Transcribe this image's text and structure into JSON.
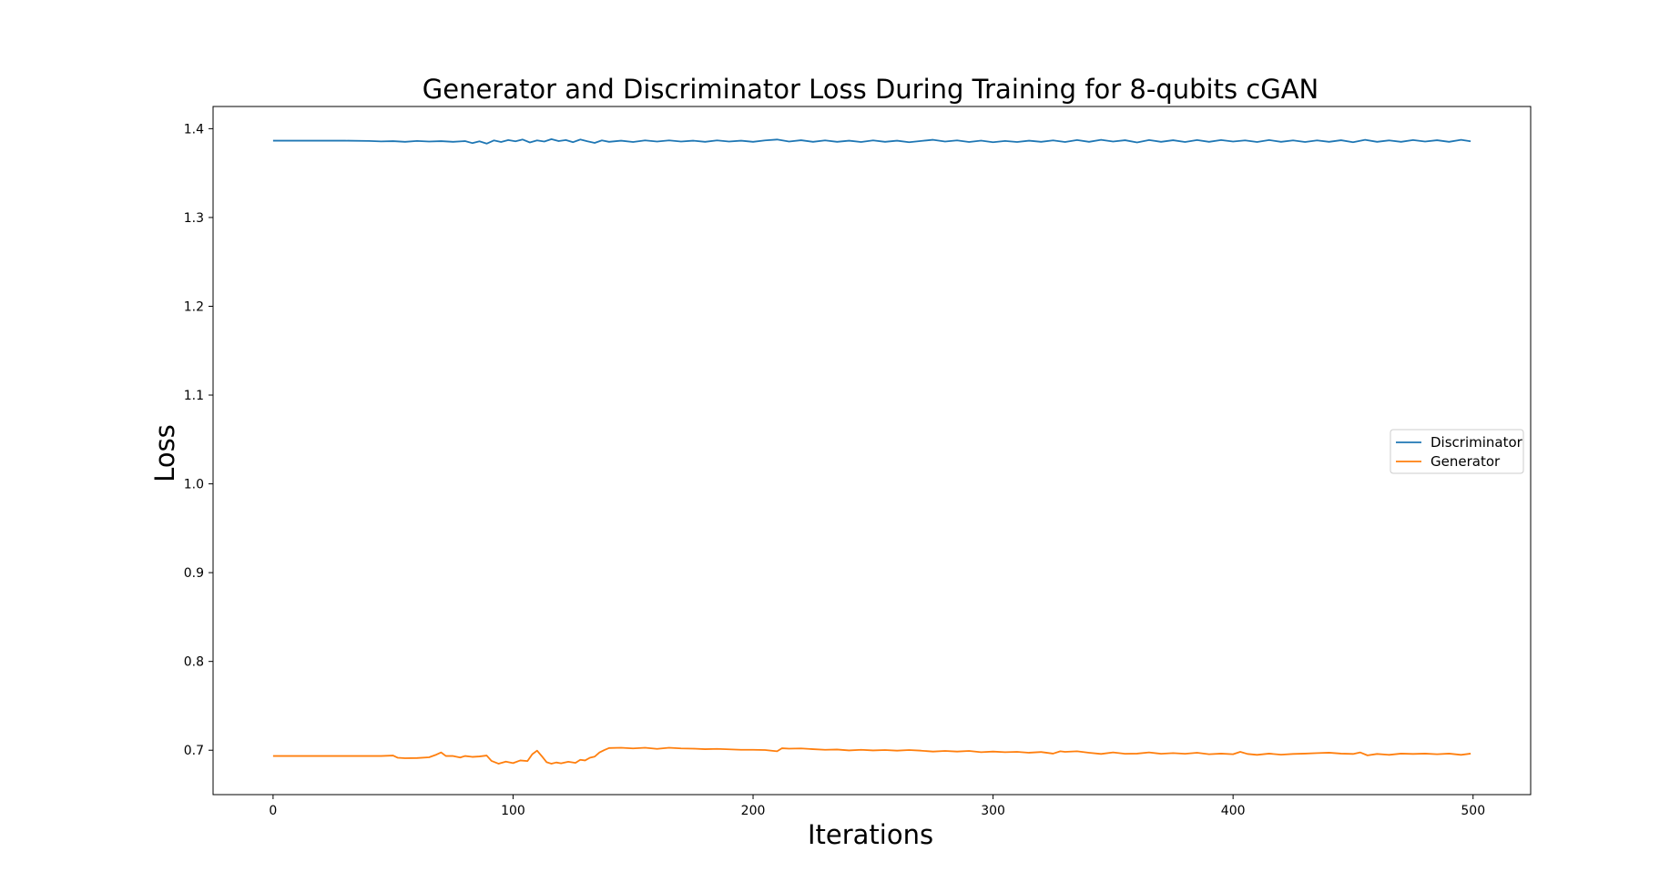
{
  "chart_data": {
    "type": "line",
    "title": "Generator and Discriminator Loss During Training for 8-qubits cGAN",
    "xlabel": "Iterations",
    "ylabel": "Loss",
    "xlim": [
      -25,
      524
    ],
    "ylim": [
      0.65,
      1.425
    ],
    "x_ticks": [
      0,
      100,
      200,
      300,
      400,
      500
    ],
    "x_tick_labels": [
      "0",
      "100",
      "200",
      "300",
      "400",
      "500"
    ],
    "y_ticks": [
      0.7,
      0.8,
      0.9,
      1.0,
      1.1,
      1.2,
      1.3,
      1.4
    ],
    "y_tick_labels": [
      "0.7",
      "0.8",
      "0.9",
      "1.0",
      "1.1",
      "1.2",
      "1.3",
      "1.4"
    ],
    "grid": false,
    "legend_position": "center-right",
    "series": [
      {
        "name": "Discriminator",
        "color": "#1f77b4",
        "points": [
          [
            0,
            1.3865
          ],
          [
            10,
            1.3865
          ],
          [
            20,
            1.3865
          ],
          [
            30,
            1.3865
          ],
          [
            40,
            1.3862
          ],
          [
            45,
            1.3857
          ],
          [
            50,
            1.386
          ],
          [
            55,
            1.3852
          ],
          [
            60,
            1.3862
          ],
          [
            65,
            1.3855
          ],
          [
            70,
            1.386
          ],
          [
            75,
            1.3852
          ],
          [
            80,
            1.386
          ],
          [
            83,
            1.3838
          ],
          [
            86,
            1.3858
          ],
          [
            89,
            1.3832
          ],
          [
            92,
            1.3868
          ],
          [
            95,
            1.385
          ],
          [
            98,
            1.3872
          ],
          [
            101,
            1.3858
          ],
          [
            104,
            1.3878
          ],
          [
            107,
            1.3845
          ],
          [
            110,
            1.3868
          ],
          [
            113,
            1.3855
          ],
          [
            116,
            1.3882
          ],
          [
            119,
            1.386
          ],
          [
            122,
            1.3872
          ],
          [
            125,
            1.3848
          ],
          [
            128,
            1.3878
          ],
          [
            131,
            1.3858
          ],
          [
            134,
            1.384
          ],
          [
            137,
            1.3868
          ],
          [
            140,
            1.3852
          ],
          [
            145,
            1.3865
          ],
          [
            150,
            1.385
          ],
          [
            155,
            1.3868
          ],
          [
            160,
            1.3855
          ],
          [
            165,
            1.3868
          ],
          [
            170,
            1.3855
          ],
          [
            175,
            1.3865
          ],
          [
            180,
            1.3852
          ],
          [
            185,
            1.3868
          ],
          [
            190,
            1.3855
          ],
          [
            195,
            1.3865
          ],
          [
            200,
            1.3852
          ],
          [
            205,
            1.3868
          ],
          [
            210,
            1.3878
          ],
          [
            215,
            1.3855
          ],
          [
            220,
            1.387
          ],
          [
            225,
            1.3852
          ],
          [
            230,
            1.3868
          ],
          [
            235,
            1.3852
          ],
          [
            240,
            1.3865
          ],
          [
            245,
            1.385
          ],
          [
            250,
            1.3868
          ],
          [
            255,
            1.3852
          ],
          [
            260,
            1.3865
          ],
          [
            265,
            1.3848
          ],
          [
            270,
            1.3862
          ],
          [
            275,
            1.3875
          ],
          [
            280,
            1.3855
          ],
          [
            285,
            1.3868
          ],
          [
            290,
            1.385
          ],
          [
            295,
            1.3866
          ],
          [
            300,
            1.3848
          ],
          [
            305,
            1.3862
          ],
          [
            310,
            1.385
          ],
          [
            315,
            1.3865
          ],
          [
            320,
            1.3852
          ],
          [
            325,
            1.3868
          ],
          [
            330,
            1.385
          ],
          [
            335,
            1.3872
          ],
          [
            340,
            1.3852
          ],
          [
            345,
            1.3875
          ],
          [
            350,
            1.3855
          ],
          [
            355,
            1.387
          ],
          [
            360,
            1.3845
          ],
          [
            365,
            1.3872
          ],
          [
            370,
            1.3852
          ],
          [
            375,
            1.387
          ],
          [
            380,
            1.385
          ],
          [
            385,
            1.3872
          ],
          [
            390,
            1.3852
          ],
          [
            395,
            1.3872
          ],
          [
            400,
            1.3855
          ],
          [
            405,
            1.3868
          ],
          [
            410,
            1.385
          ],
          [
            415,
            1.3872
          ],
          [
            420,
            1.3852
          ],
          [
            425,
            1.3868
          ],
          [
            430,
            1.385
          ],
          [
            435,
            1.3868
          ],
          [
            440,
            1.3852
          ],
          [
            445,
            1.387
          ],
          [
            450,
            1.3848
          ],
          [
            455,
            1.3875
          ],
          [
            460,
            1.3852
          ],
          [
            465,
            1.3868
          ],
          [
            470,
            1.3852
          ],
          [
            475,
            1.3872
          ],
          [
            480,
            1.3855
          ],
          [
            485,
            1.387
          ],
          [
            490,
            1.3852
          ],
          [
            495,
            1.3875
          ],
          [
            499,
            1.3858
          ]
        ]
      },
      {
        "name": "Generator",
        "color": "#ff7f0e",
        "points": [
          [
            0,
            0.6935
          ],
          [
            10,
            0.6935
          ],
          [
            20,
            0.6935
          ],
          [
            30,
            0.6935
          ],
          [
            40,
            0.6935
          ],
          [
            45,
            0.6935
          ],
          [
            50,
            0.694
          ],
          [
            52,
            0.6915
          ],
          [
            55,
            0.691
          ],
          [
            60,
            0.6912
          ],
          [
            65,
            0.692
          ],
          [
            68,
            0.695
          ],
          [
            70,
            0.6975
          ],
          [
            72,
            0.6935
          ],
          [
            75,
            0.6935
          ],
          [
            78,
            0.6918
          ],
          [
            80,
            0.6935
          ],
          [
            83,
            0.6925
          ],
          [
            86,
            0.693
          ],
          [
            89,
            0.694
          ],
          [
            91,
            0.688
          ],
          [
            94,
            0.6848
          ],
          [
            97,
            0.6872
          ],
          [
            100,
            0.6855
          ],
          [
            103,
            0.6885
          ],
          [
            106,
            0.6878
          ],
          [
            108,
            0.6955
          ],
          [
            110,
            0.6995
          ],
          [
            112,
            0.6932
          ],
          [
            114,
            0.6865
          ],
          [
            116,
            0.6848
          ],
          [
            118,
            0.6862
          ],
          [
            120,
            0.6852
          ],
          [
            123,
            0.687
          ],
          [
            126,
            0.6858
          ],
          [
            128,
            0.6892
          ],
          [
            130,
            0.6885
          ],
          [
            132,
            0.6915
          ],
          [
            134,
            0.6928
          ],
          [
            136,
            0.6975
          ],
          [
            138,
            0.7002
          ],
          [
            140,
            0.7025
          ],
          [
            145,
            0.7028
          ],
          [
            150,
            0.702
          ],
          [
            155,
            0.7028
          ],
          [
            160,
            0.7015
          ],
          [
            165,
            0.7028
          ],
          [
            170,
            0.702
          ],
          [
            175,
            0.7018
          ],
          [
            180,
            0.7012
          ],
          [
            185,
            0.7015
          ],
          [
            190,
            0.701
          ],
          [
            195,
            0.7005
          ],
          [
            200,
            0.7005
          ],
          [
            205,
            0.7002
          ],
          [
            210,
            0.6988
          ],
          [
            212,
            0.7022
          ],
          [
            215,
            0.7018
          ],
          [
            220,
            0.702
          ],
          [
            225,
            0.7012
          ],
          [
            230,
            0.7005
          ],
          [
            235,
            0.7008
          ],
          [
            240,
            0.6998
          ],
          [
            245,
            0.7005
          ],
          [
            250,
            0.6998
          ],
          [
            255,
            0.7002
          ],
          [
            260,
            0.6995
          ],
          [
            265,
            0.7002
          ],
          [
            270,
            0.6995
          ],
          [
            275,
            0.6985
          ],
          [
            280,
            0.6992
          ],
          [
            285,
            0.6985
          ],
          [
            290,
            0.6992
          ],
          [
            295,
            0.6978
          ],
          [
            300,
            0.6985
          ],
          [
            305,
            0.6978
          ],
          [
            310,
            0.6982
          ],
          [
            315,
            0.6972
          ],
          [
            320,
            0.698
          ],
          [
            325,
            0.6962
          ],
          [
            328,
            0.6988
          ],
          [
            330,
            0.6982
          ],
          [
            335,
            0.6988
          ],
          [
            340,
            0.6972
          ],
          [
            345,
            0.6958
          ],
          [
            350,
            0.6975
          ],
          [
            355,
            0.696
          ],
          [
            360,
            0.6962
          ],
          [
            365,
            0.6975
          ],
          [
            370,
            0.696
          ],
          [
            375,
            0.6968
          ],
          [
            380,
            0.696
          ],
          [
            385,
            0.6972
          ],
          [
            390,
            0.6955
          ],
          [
            395,
            0.6962
          ],
          [
            400,
            0.6955
          ],
          [
            403,
            0.6982
          ],
          [
            406,
            0.6958
          ],
          [
            410,
            0.6948
          ],
          [
            415,
            0.6962
          ],
          [
            420,
            0.695
          ],
          [
            425,
            0.6958
          ],
          [
            430,
            0.6962
          ],
          [
            435,
            0.6968
          ],
          [
            440,
            0.6972
          ],
          [
            445,
            0.6962
          ],
          [
            450,
            0.6958
          ],
          [
            453,
            0.6975
          ],
          [
            456,
            0.6942
          ],
          [
            460,
            0.6958
          ],
          [
            465,
            0.6948
          ],
          [
            470,
            0.6962
          ],
          [
            475,
            0.6958
          ],
          [
            480,
            0.6962
          ],
          [
            485,
            0.6955
          ],
          [
            490,
            0.6962
          ],
          [
            495,
            0.6948
          ],
          [
            499,
            0.6962
          ]
        ]
      }
    ]
  }
}
